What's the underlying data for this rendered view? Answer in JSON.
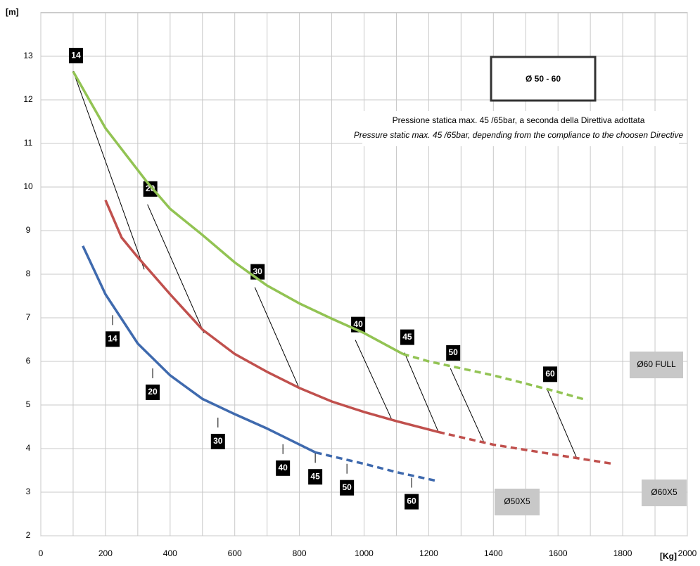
{
  "chart_data": {
    "type": "line",
    "title": "Ø 50 - 60",
    "note": [
      "Pressione statica max. 45 /65bar, a seconda della Direttiva adottata",
      "Pressure static max. 45 /65bar, depending from the compliance to the choosen Directive"
    ],
    "x_label": "[Kg]",
    "y_label": "[m]",
    "xlim": [
      0,
      2000
    ],
    "xticks": [
      0,
      200,
      400,
      600,
      800,
      1000,
      1200,
      1400,
      1600,
      1800,
      2000
    ],
    "x_minor_grid": [
      100,
      300,
      500,
      700,
      900,
      1100,
      1300,
      1500,
      1700,
      1900
    ],
    "ylim": [
      2,
      14
    ],
    "yticks": [
      2,
      3,
      4,
      5,
      6,
      7,
      8,
      9,
      10,
      11,
      12,
      13
    ],
    "grid": true,
    "series": [
      {
        "name": "Ø60 FULL",
        "color": "#92c353",
        "segments": [
          {
            "dash": false,
            "x": [
              100,
              200,
              330,
              400,
              500,
              600,
              700,
              800,
              900,
              1000,
              1120
            ],
            "values": [
              12.65,
              11.35,
              10.1,
              9.5,
              8.9,
              8.27,
              7.74,
              7.33,
              6.98,
              6.65,
              6.17
            ]
          },
          {
            "dash": true,
            "x": [
              1120,
              1200,
              1400,
              1600,
              1690
            ],
            "values": [
              6.17,
              6.0,
              5.68,
              5.3,
              5.11
            ]
          }
        ]
      },
      {
        "name": "Ø60X5",
        "color": "#c0504d",
        "segments": [
          {
            "dash": false,
            "x": [
              200,
              250,
              300,
              400,
              500,
              600,
              700,
              800,
              900,
              1000,
              1100,
              1230
            ],
            "values": [
              9.7,
              8.84,
              8.39,
              7.54,
              6.73,
              6.17,
              5.76,
              5.39,
              5.08,
              4.84,
              4.63,
              4.38
            ]
          },
          {
            "dash": true,
            "x": [
              1230,
              1400,
              1600,
              1770
            ],
            "values": [
              4.38,
              4.09,
              3.85,
              3.65
            ]
          }
        ]
      },
      {
        "name": "Ø50X5",
        "color": "#3f6aae",
        "segments": [
          {
            "dash": false,
            "x": [
              130,
              200,
              300,
              400,
              500,
              600,
              700,
              850
            ],
            "values": [
              8.65,
              7.54,
              6.41,
              5.68,
              5.14,
              4.79,
              4.46,
              3.91
            ]
          },
          {
            "dash": true,
            "x": [
              850,
              1000,
              1100,
              1230
            ],
            "values": [
              3.91,
              3.65,
              3.46,
              3.25
            ]
          }
        ]
      }
    ],
    "isolines": [
      {
        "label": "14",
        "x": [
          100,
          320
        ],
        "y": [
          12.66,
          8.11
        ],
        "tick_x": 222,
        "tick_y": 7.06
      },
      {
        "label": "20",
        "x": [
          330,
          505
        ],
        "y": [
          9.6,
          6.65
        ],
        "tick_x": 346,
        "tick_y": 5.84
      },
      {
        "label": "30",
        "x": [
          662,
          799
        ],
        "y": [
          7.7,
          5.39
        ],
        "tick_x": 548,
        "tick_y": 4.71
      },
      {
        "label": "40",
        "x": [
          973,
          1086
        ],
        "y": [
          6.49,
          4.66
        ],
        "tick_x": 749,
        "tick_y": 4.1
      },
      {
        "label": "45",
        "x": [
          1125,
          1230
        ],
        "y": [
          6.2,
          4.38
        ],
        "tick_x": 849,
        "tick_y": 3.9
      },
      {
        "label": "50",
        "x": [
          1267,
          1371
        ],
        "y": [
          5.84,
          4.14
        ],
        "tick_x": 947,
        "tick_y": 3.65
      },
      {
        "label": "60",
        "x": [
          1567,
          1658
        ],
        "y": [
          5.35,
          3.78
        ],
        "tick_x": 1147,
        "tick_y": 3.33
      }
    ]
  }
}
